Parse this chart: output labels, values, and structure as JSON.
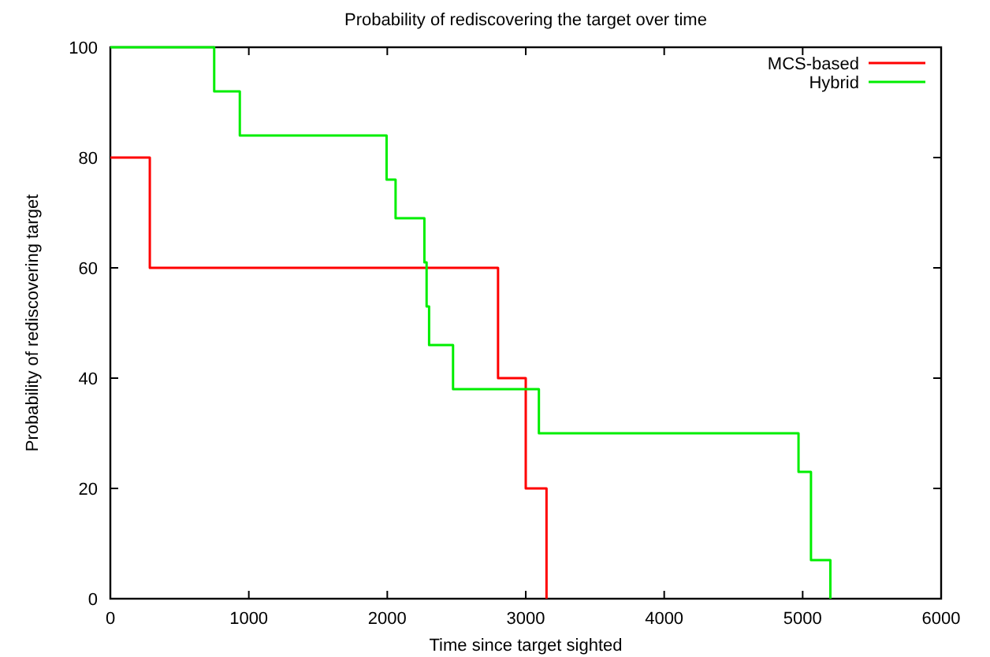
{
  "chart_data": {
    "type": "step",
    "title": "Probability of rediscovering the target over time",
    "xlabel": "Time since target sighted",
    "ylabel": "Probability of rediscovering target",
    "xlim": [
      0,
      6000
    ],
    "ylim": [
      0,
      100
    ],
    "xticks": [
      0,
      1000,
      2000,
      3000,
      4000,
      5000,
      6000
    ],
    "yticks": [
      0,
      20,
      40,
      60,
      80,
      100
    ],
    "legend": "top right",
    "grid": false,
    "series": [
      {
        "name": "MCS-based",
        "color": "#ff0000",
        "x": [
          0,
          285,
          2800,
          3000,
          3150
        ],
        "values": [
          80,
          60,
          40,
          20,
          0
        ]
      },
      {
        "name": "Hybrid",
        "color": "#00ee00",
        "x": [
          0,
          750,
          935,
          1995,
          2060,
          2268,
          2284,
          2302,
          2475,
          3095,
          4970,
          5060,
          5200
        ],
        "values": [
          100,
          92,
          84,
          76,
          69,
          61,
          53,
          46,
          38,
          30,
          23,
          7,
          0
        ]
      }
    ]
  }
}
